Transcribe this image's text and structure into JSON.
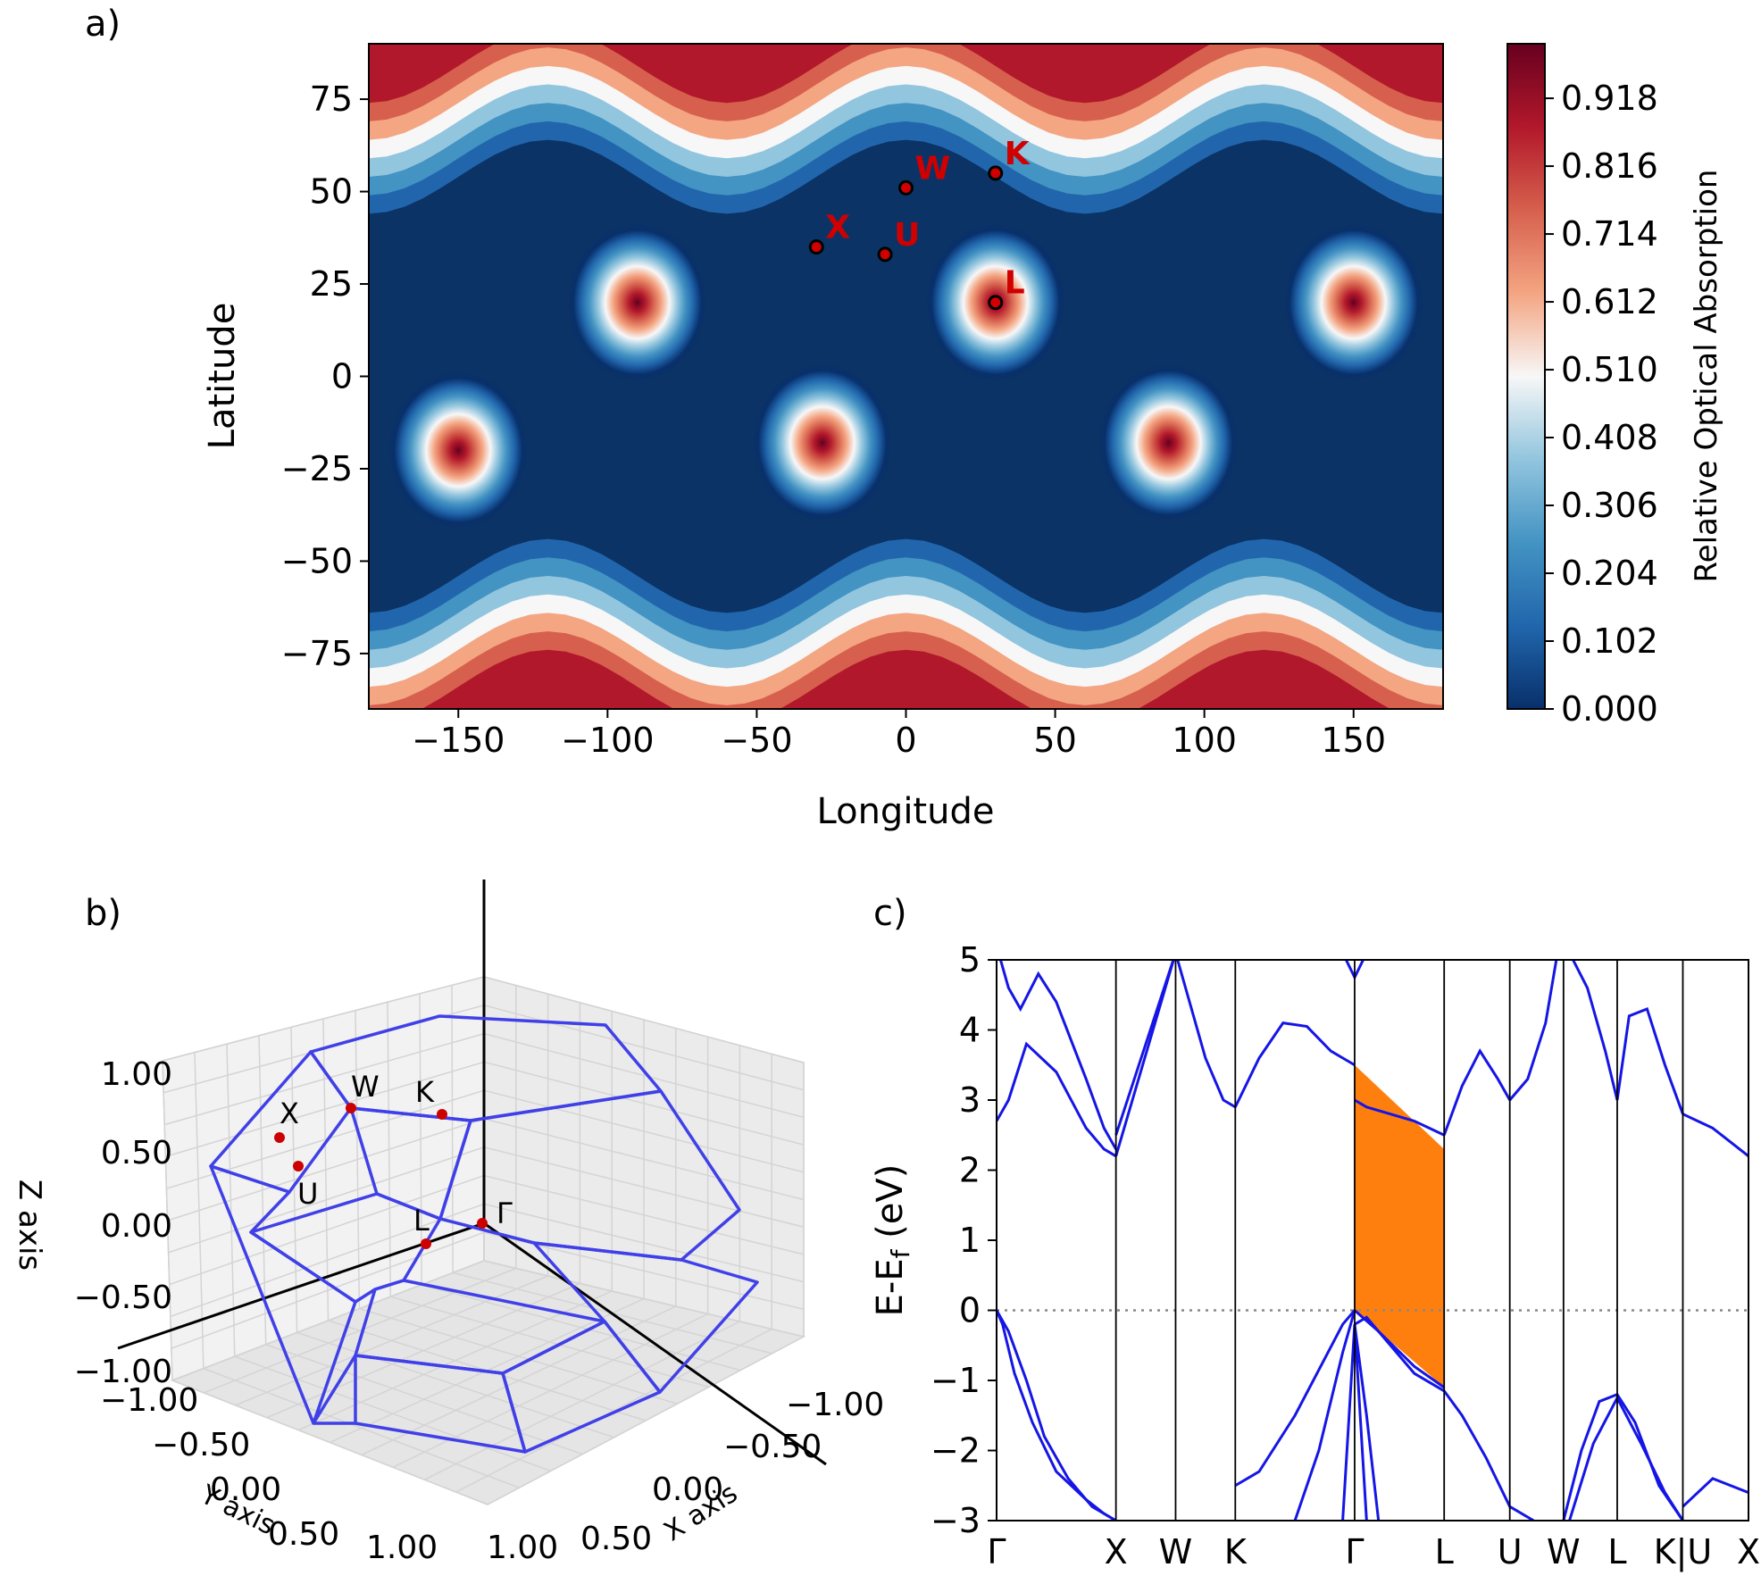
{
  "panel_labels": {
    "a": "a)",
    "b": "b)",
    "c": "c)"
  },
  "chart_data": [
    {
      "type": "heatmap",
      "panel": "a)",
      "xlabel": "Longitude",
      "ylabel": "Latitude",
      "xlim": [
        -180,
        180
      ],
      "ylim": [
        -90,
        90
      ],
      "xticks": [
        -150,
        -100,
        -50,
        0,
        50,
        100,
        150
      ],
      "xtick_labels": [
        "−150",
        "−100",
        "−50",
        "0",
        "50",
        "100",
        "150"
      ],
      "yticks": [
        75,
        50,
        25,
        0,
        -25,
        -50,
        -75
      ],
      "ytick_labels": [
        "75",
        "50",
        "25",
        "0",
        "−25",
        "−50",
        "−75"
      ],
      "colorbar": {
        "label": "Relative Optical Absorption",
        "range": [
          0,
          1
        ],
        "ticks": [
          0.0,
          0.102,
          0.204,
          0.306,
          0.408,
          0.51,
          0.612,
          0.714,
          0.816,
          0.918
        ],
        "tick_labels": [
          "0.000",
          "0.102",
          "0.204",
          "0.306",
          "0.408",
          "0.510",
          "0.612",
          "0.714",
          "0.816",
          "0.918"
        ],
        "colormap": [
          "#08306b",
          "#2166ac",
          "#4393c3",
          "#92c5de",
          "#f7f7f7",
          "#f4a582",
          "#d6604d",
          "#b2182b",
          "#67001f"
        ]
      },
      "peaks": [
        {
          "lon": -90,
          "lat": 20,
          "value": 0.9
        },
        {
          "lon": 30,
          "lat": 20,
          "value": 0.95
        },
        {
          "lon": 150,
          "lat": 20,
          "value": 0.9
        },
        {
          "lon": -150,
          "lat": -20,
          "value": 0.9
        },
        {
          "lon": -28,
          "lat": -18,
          "value": 1.0
        },
        {
          "lon": 88,
          "lat": -18,
          "value": 1.0
        }
      ],
      "points": [
        {
          "label": "W",
          "lon": 0,
          "lat": 51
        },
        {
          "label": "K",
          "lon": 30,
          "lat": 55
        },
        {
          "label": "X",
          "lon": -30,
          "lat": 35
        },
        {
          "label": "U",
          "lon": -7,
          "lat": 33
        },
        {
          "label": "L",
          "lon": 30,
          "lat": 20
        }
      ],
      "point_color": "#d00000"
    },
    {
      "type": "scatter",
      "panel": "b)",
      "xlabel": "X axis",
      "ylabel": "Y axis",
      "zlabel": "Z axis",
      "tick_labels": [
        "−1.00",
        "−0.50",
        "0.00",
        "0.50",
        "1.00"
      ],
      "x_tick_labels": [
        "−1.00",
        "−0.50",
        "0.00",
        "0.50",
        "1.00"
      ],
      "y_tick_labels": [
        "−1.00",
        "−0.50",
        "0.00",
        "0.50",
        "1.00"
      ],
      "z_tick_labels": [
        "1.00",
        "0.50",
        "0.00",
        "−0.50",
        "−1.00"
      ],
      "edge_color": "#4040e8",
      "point_color": "#cc0000",
      "points": [
        {
          "label": "Γ"
        },
        {
          "label": "X"
        },
        {
          "label": "W"
        },
        {
          "label": "K"
        },
        {
          "label": "U"
        },
        {
          "label": "L"
        }
      ]
    },
    {
      "type": "line",
      "panel": "c)",
      "ylabel_main": "E-E",
      "ylabel_sub": "f",
      "ylabel_unit": " (eV)",
      "ylim": [
        -3,
        5
      ],
      "yticks": [
        5,
        4,
        3,
        2,
        1,
        0,
        -1,
        -2,
        -3
      ],
      "ytick_labels": [
        "5",
        "4",
        "3",
        "2",
        "1",
        "0",
        "−1",
        "−2",
        "−3"
      ],
      "kpath_labels": [
        "Γ",
        "X",
        "W",
        "K",
        "Γ",
        "L",
        "U",
        "W",
        "L",
        "K|U",
        "X"
      ],
      "kpath_positions": [
        0,
        1,
        1.5,
        2,
        3,
        3.75,
        4.3,
        4.75,
        5.2,
        5.75,
        6.3
      ],
      "fermi_level": 0,
      "line_color": "#1515e6",
      "gap_fill": {
        "color": "#ff7f0e",
        "from": 3.0,
        "to": 3.75,
        "top": [
          3.5,
          2.3
        ],
        "bottom": [
          0.0,
          -1.1
        ]
      },
      "bands": [
        {
          "x": [
            0,
            0.1,
            0.25,
            0.5,
            0.75,
            0.9,
            1.0
          ],
          "y": [
            2.7,
            3.0,
            3.8,
            3.4,
            2.6,
            2.3,
            2.2
          ]
        },
        {
          "x": [
            0,
            0.1,
            0.2,
            0.35,
            0.5,
            0.75,
            0.9,
            1.0
          ],
          "y": [
            5.2,
            4.6,
            4.3,
            4.8,
            4.4,
            3.3,
            2.6,
            2.3
          ]
        },
        {
          "x": [
            0,
            0.05,
            0.15,
            0.3,
            0.5,
            0.75,
            0.9,
            1.0
          ],
          "y": [
            0.0,
            -0.2,
            -0.9,
            -1.6,
            -2.3,
            -2.7,
            -2.9,
            -3.0
          ]
        },
        {
          "x": [
            0,
            0.1,
            0.25,
            0.4,
            0.6,
            0.8,
            1.0
          ],
          "y": [
            0.0,
            -0.3,
            -1.0,
            -1.8,
            -2.4,
            -2.8,
            -3.0
          ]
        },
        {
          "x": [
            1.0,
            1.5
          ],
          "y": [
            2.2,
            5.1
          ]
        },
        {
          "x": [
            1.0,
            1.5
          ],
          "y": [
            2.5,
            5.1
          ]
        },
        {
          "x": [
            1.5,
            1.6,
            1.75,
            1.9,
            2.0
          ],
          "y": [
            5.1,
            4.5,
            3.6,
            3.0,
            2.9
          ]
        },
        {
          "x": [
            2.0,
            2.2,
            2.4,
            2.6,
            2.8,
            3.0
          ],
          "y": [
            2.9,
            3.6,
            4.1,
            4.05,
            3.7,
            3.5
          ]
        },
        {
          "x": [
            2.0,
            2.2,
            2.5,
            2.9,
            3.0
          ],
          "y": [
            -2.5,
            -2.3,
            -1.5,
            -0.2,
            0.0
          ]
        },
        {
          "x": [
            3.0,
            3.2,
            3.5,
            3.75
          ],
          "y": [
            0.0,
            -0.3,
            -0.8,
            -1.1
          ]
        },
        {
          "x": [
            3.0,
            3.1,
            3.3,
            3.5,
            3.75
          ],
          "y": [
            -0.2,
            -0.1,
            -0.5,
            -0.9,
            -1.15
          ]
        },
        {
          "x": [
            2.5,
            2.7,
            2.9,
            3.0
          ],
          "y": [
            -3.0,
            -2.0,
            -0.6,
            0.0
          ]
        },
        {
          "x": [
            2.9,
            3.0,
            3.1
          ],
          "y": [
            -3.0,
            -0.2,
            -3.0
          ]
        },
        {
          "x": [
            3.0,
            3.1,
            3.2
          ],
          "y": [
            -0.2,
            -1.5,
            -3.0
          ]
        },
        {
          "x": [
            3.0,
            3.1,
            3.3,
            3.5,
            3.75
          ],
          "y": [
            3.0,
            2.9,
            2.8,
            2.7,
            2.5
          ]
        },
        {
          "x": [
            2.9,
            3.0,
            3.1
          ],
          "y": [
            5.1,
            4.75,
            5.1
          ]
        },
        {
          "x": [
            3.75,
            3.9,
            4.05,
            4.2,
            4.3
          ],
          "y": [
            2.5,
            3.2,
            3.7,
            3.3,
            3.0
          ]
        },
        {
          "x": [
            4.3,
            4.45,
            4.6,
            4.7
          ],
          "y": [
            3.0,
            3.3,
            4.1,
            5.1
          ]
        },
        {
          "x": [
            3.75,
            3.9,
            4.1,
            4.3,
            4.5
          ],
          "y": [
            -1.15,
            -1.5,
            -2.1,
            -2.8,
            -3.0
          ]
        },
        {
          "x": [
            4.8,
            4.95,
            5.1,
            5.2
          ],
          "y": [
            5.1,
            4.6,
            3.7,
            3.0
          ]
        },
        {
          "x": [
            5.2,
            5.3,
            5.45,
            5.6,
            5.75
          ],
          "y": [
            3.0,
            4.2,
            4.3,
            3.5,
            2.8
          ]
        },
        {
          "x": [
            4.75,
            4.9,
            5.05,
            5.2,
            5.35,
            5.55,
            5.75
          ],
          "y": [
            -3.0,
            -2.0,
            -1.3,
            -1.2,
            -1.6,
            -2.5,
            -3.0
          ]
        },
        {
          "x": [
            4.8,
            5.0,
            5.2,
            5.4,
            5.6,
            5.75
          ],
          "y": [
            -3.0,
            -1.9,
            -1.25,
            -1.9,
            -2.6,
            -3.0
          ]
        },
        {
          "x": [
            5.75,
            6.0,
            6.3
          ],
          "y": [
            2.8,
            2.6,
            2.2
          ]
        },
        {
          "x": [
            5.75,
            6.0,
            6.3
          ],
          "y": [
            -2.8,
            -2.4,
            -2.6
          ]
        }
      ]
    }
  ]
}
